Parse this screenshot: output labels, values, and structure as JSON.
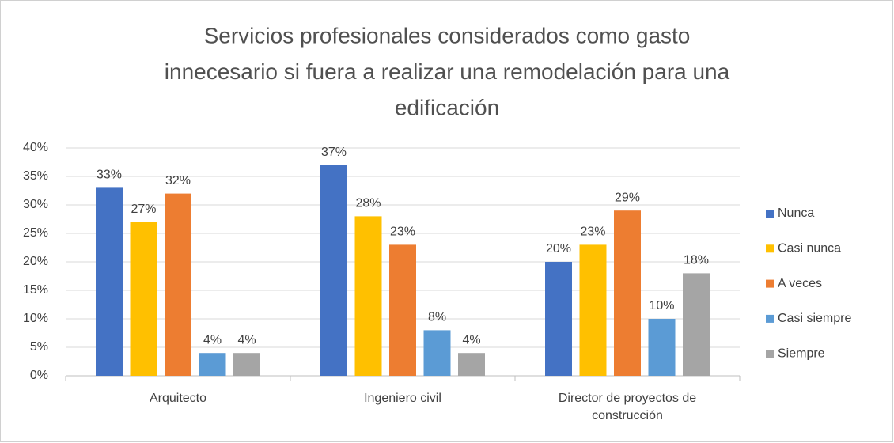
{
  "chart_data": {
    "type": "bar",
    "title": [
      "Servicios profesionales considerados como gasto",
      "innecesario si fuera a realizar  una remodelación para una",
      "edificación"
    ],
    "categories": [
      "Arquitecto",
      "Ingeniero civil",
      "Director de proyectos de construcción"
    ],
    "series": [
      {
        "name": "Nunca",
        "color": "#4472c4",
        "values": [
          33,
          37,
          20
        ],
        "value_labels": [
          "33%",
          "37%",
          "20%"
        ]
      },
      {
        "name": "Casi nunca",
        "color": "#ffc000",
        "values": [
          27,
          28,
          23
        ],
        "value_labels": [
          "27%",
          "28%",
          "23%"
        ]
      },
      {
        "name": "A veces",
        "color": "#ed7d31",
        "values": [
          32,
          23,
          29
        ],
        "value_labels": [
          "32%",
          "23%",
          "29%"
        ]
      },
      {
        "name": "Casi siempre",
        "color": "#5b9bd5",
        "values": [
          4,
          8,
          10
        ],
        "value_labels": [
          "4%",
          "8%",
          "10%"
        ]
      },
      {
        "name": "Siempre",
        "color": "#a5a5a5",
        "values": [
          4,
          4,
          18
        ],
        "value_labels": [
          "4%",
          "4%",
          "18%"
        ]
      }
    ],
    "ylim": [
      0,
      40
    ],
    "yticks": [
      {
        "value": 0,
        "label": "0%"
      },
      {
        "value": 5,
        "label": "5%"
      },
      {
        "value": 10,
        "label": "10%"
      },
      {
        "value": 15,
        "label": "15%"
      },
      {
        "value": 20,
        "label": "20%"
      },
      {
        "value": 25,
        "label": "25%"
      },
      {
        "value": 30,
        "label": "30%"
      },
      {
        "value": 35,
        "label": "35%"
      },
      {
        "value": 40,
        "label": "40%"
      }
    ],
    "grid": true,
    "legend": "right"
  }
}
